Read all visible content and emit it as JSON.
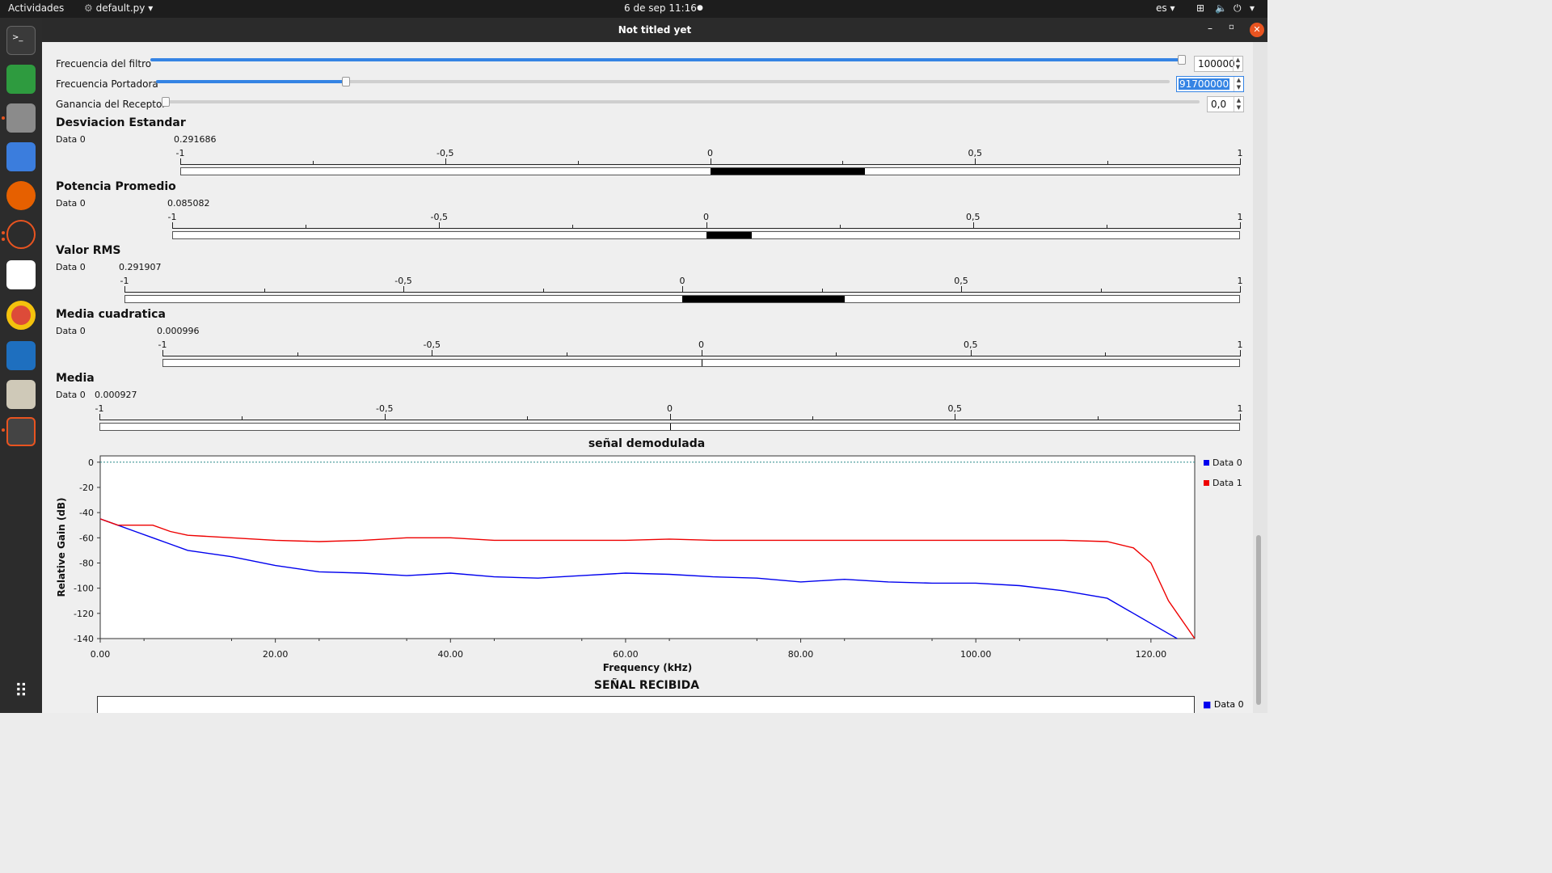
{
  "topbar": {
    "activities": "Actividades",
    "app_menu": "default.py",
    "clock": "6 de sep  11:16",
    "lang": "es"
  },
  "window": {
    "title": "Not titled yet"
  },
  "controls": [
    {
      "label": "Frecuencia del filtro",
      "value": "100000",
      "fraction": 1.0
    },
    {
      "label": "Frecuencia Portadora",
      "value": "91700000",
      "fraction": 0.2
    },
    {
      "label": "Ganancia del Receptor",
      "value": "0,0",
      "fraction": 0.0
    }
  ],
  "meters": [
    {
      "title": "Desviacion Estandar",
      "series_label": "Data 0",
      "value_text": "0.291686",
      "value": 0.291686,
      "bar_start": 0,
      "bar_end": 0.291686
    },
    {
      "title": "Potencia Promedio",
      "series_label": "Data 0",
      "value_text": "0.085082",
      "value": 0.085082,
      "bar_start": 0,
      "bar_end": 0.085082
    },
    {
      "title": "Valor RMS",
      "series_label": "Data 0",
      "value_text": "0.291907",
      "value": 0.291907,
      "bar_start": 0,
      "bar_end": 0.291907
    },
    {
      "title": "Media cuadratica",
      "series_label": "Data 0",
      "value_text": "0.000996",
      "value": 0.000996,
      "bar_start": 0,
      "bar_end": 0.000996
    },
    {
      "title": "Media",
      "series_label": "Data 0",
      "value_text": "0.000927",
      "value": 0.000927,
      "bar_start": 0,
      "bar_end": 0.000927
    }
  ],
  "meter_ticks": [
    "-1",
    "-0,5",
    "0",
    "0,5",
    "1"
  ],
  "chart_data": {
    "type": "line",
    "title": "señal demodulada",
    "xlabel": "Frequency (kHz)",
    "ylabel": "Relative Gain (dB)",
    "xlim": [
      0,
      125
    ],
    "ylim": [
      -140,
      5
    ],
    "x_ticks": [
      "0.00",
      "20.00",
      "40.00",
      "60.00",
      "80.00",
      "100.00",
      "120.00"
    ],
    "y_ticks": [
      "0",
      "-20",
      "-40",
      "-60",
      "-80",
      "-100",
      "-120",
      "-140"
    ],
    "legend_position": "right",
    "reference_line": 0,
    "colors": {
      "Data 0": "#0000ee",
      "Data 1": "#ee0000",
      "reference": "#2a8a8a"
    },
    "series": [
      {
        "name": "Data 0",
        "x": [
          0,
          2,
          4,
          6,
          8,
          10,
          15,
          20,
          25,
          30,
          35,
          40,
          45,
          50,
          55,
          60,
          65,
          70,
          75,
          80,
          85,
          90,
          95,
          100,
          105,
          110,
          115,
          118,
          120,
          122,
          123
        ],
        "values": [
          -45,
          -50,
          -55,
          -60,
          -65,
          -70,
          -75,
          -82,
          -87,
          -88,
          -90,
          -88,
          -91,
          -92,
          -90,
          -88,
          -89,
          -91,
          -92,
          -95,
          -93,
          -95,
          -96,
          -96,
          -98,
          -102,
          -108,
          -120,
          -128,
          -136,
          -140
        ]
      },
      {
        "name": "Data 1",
        "x": [
          0,
          2,
          4,
          6,
          8,
          10,
          15,
          20,
          25,
          30,
          35,
          40,
          45,
          50,
          55,
          60,
          65,
          70,
          75,
          80,
          85,
          90,
          95,
          100,
          105,
          110,
          115,
          118,
          120,
          122,
          124,
          125
        ],
        "values": [
          -45,
          -50,
          -50,
          -50,
          -55,
          -58,
          -60,
          -62,
          -63,
          -62,
          -60,
          -60,
          -62,
          -62,
          -62,
          -62,
          -61,
          -62,
          -62,
          -62,
          -62,
          -62,
          -62,
          -62,
          -62,
          -62,
          -63,
          -68,
          -80,
          -110,
          -130,
          -140
        ]
      }
    ]
  },
  "second_plot": {
    "title": "SEÑAL RECIBIDA",
    "legend": [
      "Data 0"
    ]
  }
}
